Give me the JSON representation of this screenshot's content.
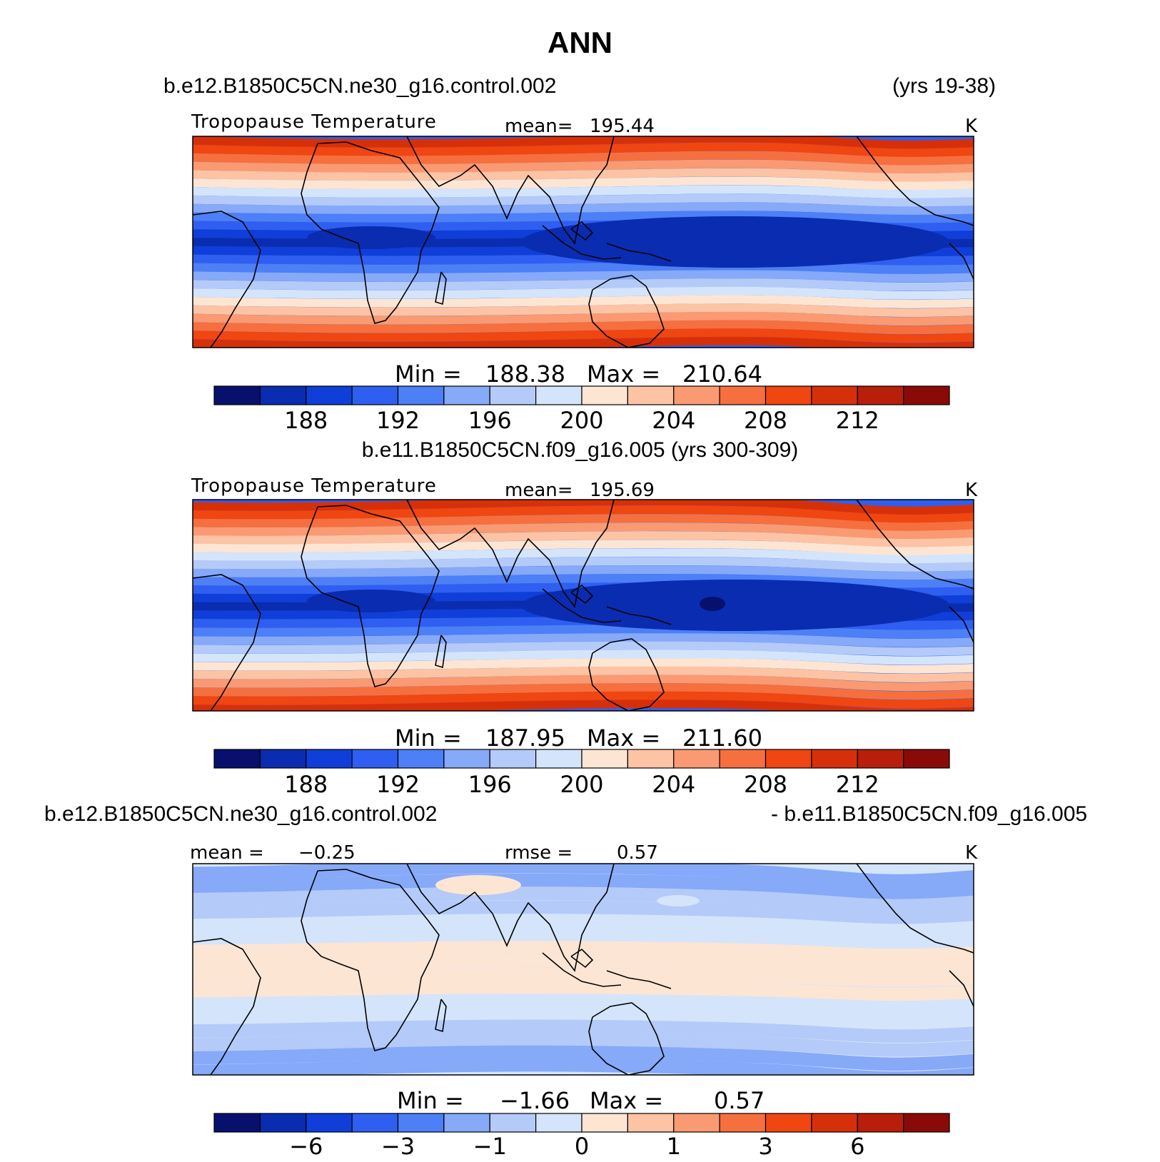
{
  "figure": {
    "title": "ANN"
  },
  "colorbar_colors": [
    "#08106e",
    "#0a2cb0",
    "#0f3fd8",
    "#2f5ff0",
    "#4d7ff6",
    "#86a9f8",
    "#b4caf8",
    "#d4e4fb",
    "#fde5d4",
    "#fcc3a4",
    "#f99a72",
    "#f66f3f",
    "#f04611",
    "#d6300b",
    "#b81f0a",
    "#8a0a07"
  ],
  "chart_data": [
    {
      "type": "heatmap",
      "case_left": "b.e12.B1850C5CN.ne30_g16.control.002",
      "case_right": "(yrs 19-38)",
      "title": "Tropopause Temperature",
      "stat_label": "mean=",
      "stat_value": "195.44",
      "units": "K",
      "minmax": {
        "min_label": "Min =",
        "min": "188.38",
        "max_label": "Max =",
        "max": "210.64"
      },
      "colorbar_ticks": [
        "188",
        "192",
        "196",
        "200",
        "204",
        "208",
        "212"
      ],
      "field_range": [
        188.38,
        210.64
      ],
      "mean": 195.44
    },
    {
      "type": "heatmap",
      "case_center": "b.e11.B1850C5CN.f09_g16.005 (yrs 300-309)",
      "title": "Tropopause Temperature",
      "stat_label": "mean=",
      "stat_value": "195.69",
      "units": "K",
      "minmax": {
        "min_label": "Min =",
        "min": "187.95",
        "max_label": "Max =",
        "max": "211.60"
      },
      "colorbar_ticks": [
        "188",
        "192",
        "196",
        "200",
        "204",
        "208",
        "212"
      ],
      "field_range": [
        187.95,
        211.6
      ],
      "mean": 195.69
    },
    {
      "type": "heatmap",
      "case_left": "b.e12.B1850C5CN.ne30_g16.control.002",
      "case_right": "- b.e11.B1850C5CN.f09_g16.005",
      "mean_label": "mean =",
      "mean_value": "−0.25",
      "rmse_label": "rmse =",
      "rmse_value": "0.57",
      "units": "K",
      "minmax": {
        "min_label": "Min =",
        "min": "−1.66",
        "max_label": "Max =",
        "max": "0.57"
      },
      "colorbar_ticks": [
        "−6",
        "−3",
        "−1",
        "0",
        "1",
        "3",
        "6"
      ],
      "field_range": [
        -1.66,
        0.57
      ],
      "mean": -0.25,
      "rmse": 0.57
    }
  ]
}
